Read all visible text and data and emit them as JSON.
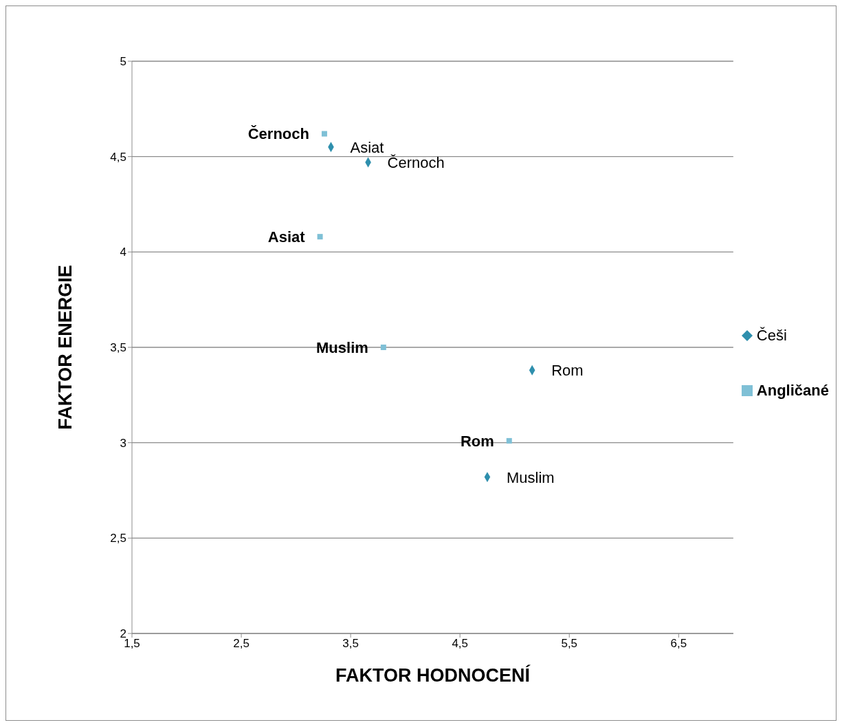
{
  "chart_data": {
    "type": "scatter",
    "xlabel": "FAKTOR HODNOCENÍ",
    "ylabel": "FAKTOR ENERGIE",
    "xlim": [
      1.5,
      7
    ],
    "xticks": [
      {
        "value": 1.5,
        "label": "1,5"
      },
      {
        "value": 2.5,
        "label": "2,5"
      },
      {
        "value": 3.5,
        "label": "3,5"
      },
      {
        "value": 4.5,
        "label": "4,5"
      },
      {
        "value": 5.5,
        "label": "5,5"
      },
      {
        "value": 6.5,
        "label": "6,5"
      }
    ],
    "ylim": [
      2,
      5
    ],
    "yticks": [
      2,
      {
        "value": 2.5,
        "label": "2,5"
      },
      3,
      {
        "value": 3.5,
        "label": "3,5"
      },
      4,
      {
        "value": 4.5,
        "label": "4,5"
      },
      5
    ],
    "grid": "y",
    "legend": "right",
    "series": [
      {
        "name": "Češi",
        "color": "#2e8fad",
        "marker": "diamond",
        "x": [
          3.32,
          3.66,
          5.16,
          4.75
        ],
        "values": [
          4.55,
          4.47,
          3.38,
          2.82
        ]
      },
      {
        "name": "Angličané",
        "color": "#7fc0d6",
        "marker": "square",
        "x": [
          3.26,
          3.22,
          3.8,
          4.95
        ],
        "values": [
          4.62,
          4.08,
          3.5,
          3.01
        ]
      }
    ],
    "annotations": [
      {
        "text": "Asiat",
        "x": 3.32,
        "y": 4.55
      },
      {
        "text": "Černoch",
        "x": 3.66,
        "y": 4.47
      },
      {
        "text": "Rom",
        "x": 5.16,
        "y": 3.38
      },
      {
        "text": "Muslim",
        "x": 4.75,
        "y": 2.82
      },
      {
        "text": "Černoch",
        "x": 3.26,
        "y": 4.62
      },
      {
        "text": "Asiat",
        "x": 3.22,
        "y": 4.08
      },
      {
        "text": "Muslim",
        "x": 3.8,
        "y": 3.5
      },
      {
        "text": "Rom",
        "x": 4.95,
        "y": 3.01
      }
    ]
  }
}
